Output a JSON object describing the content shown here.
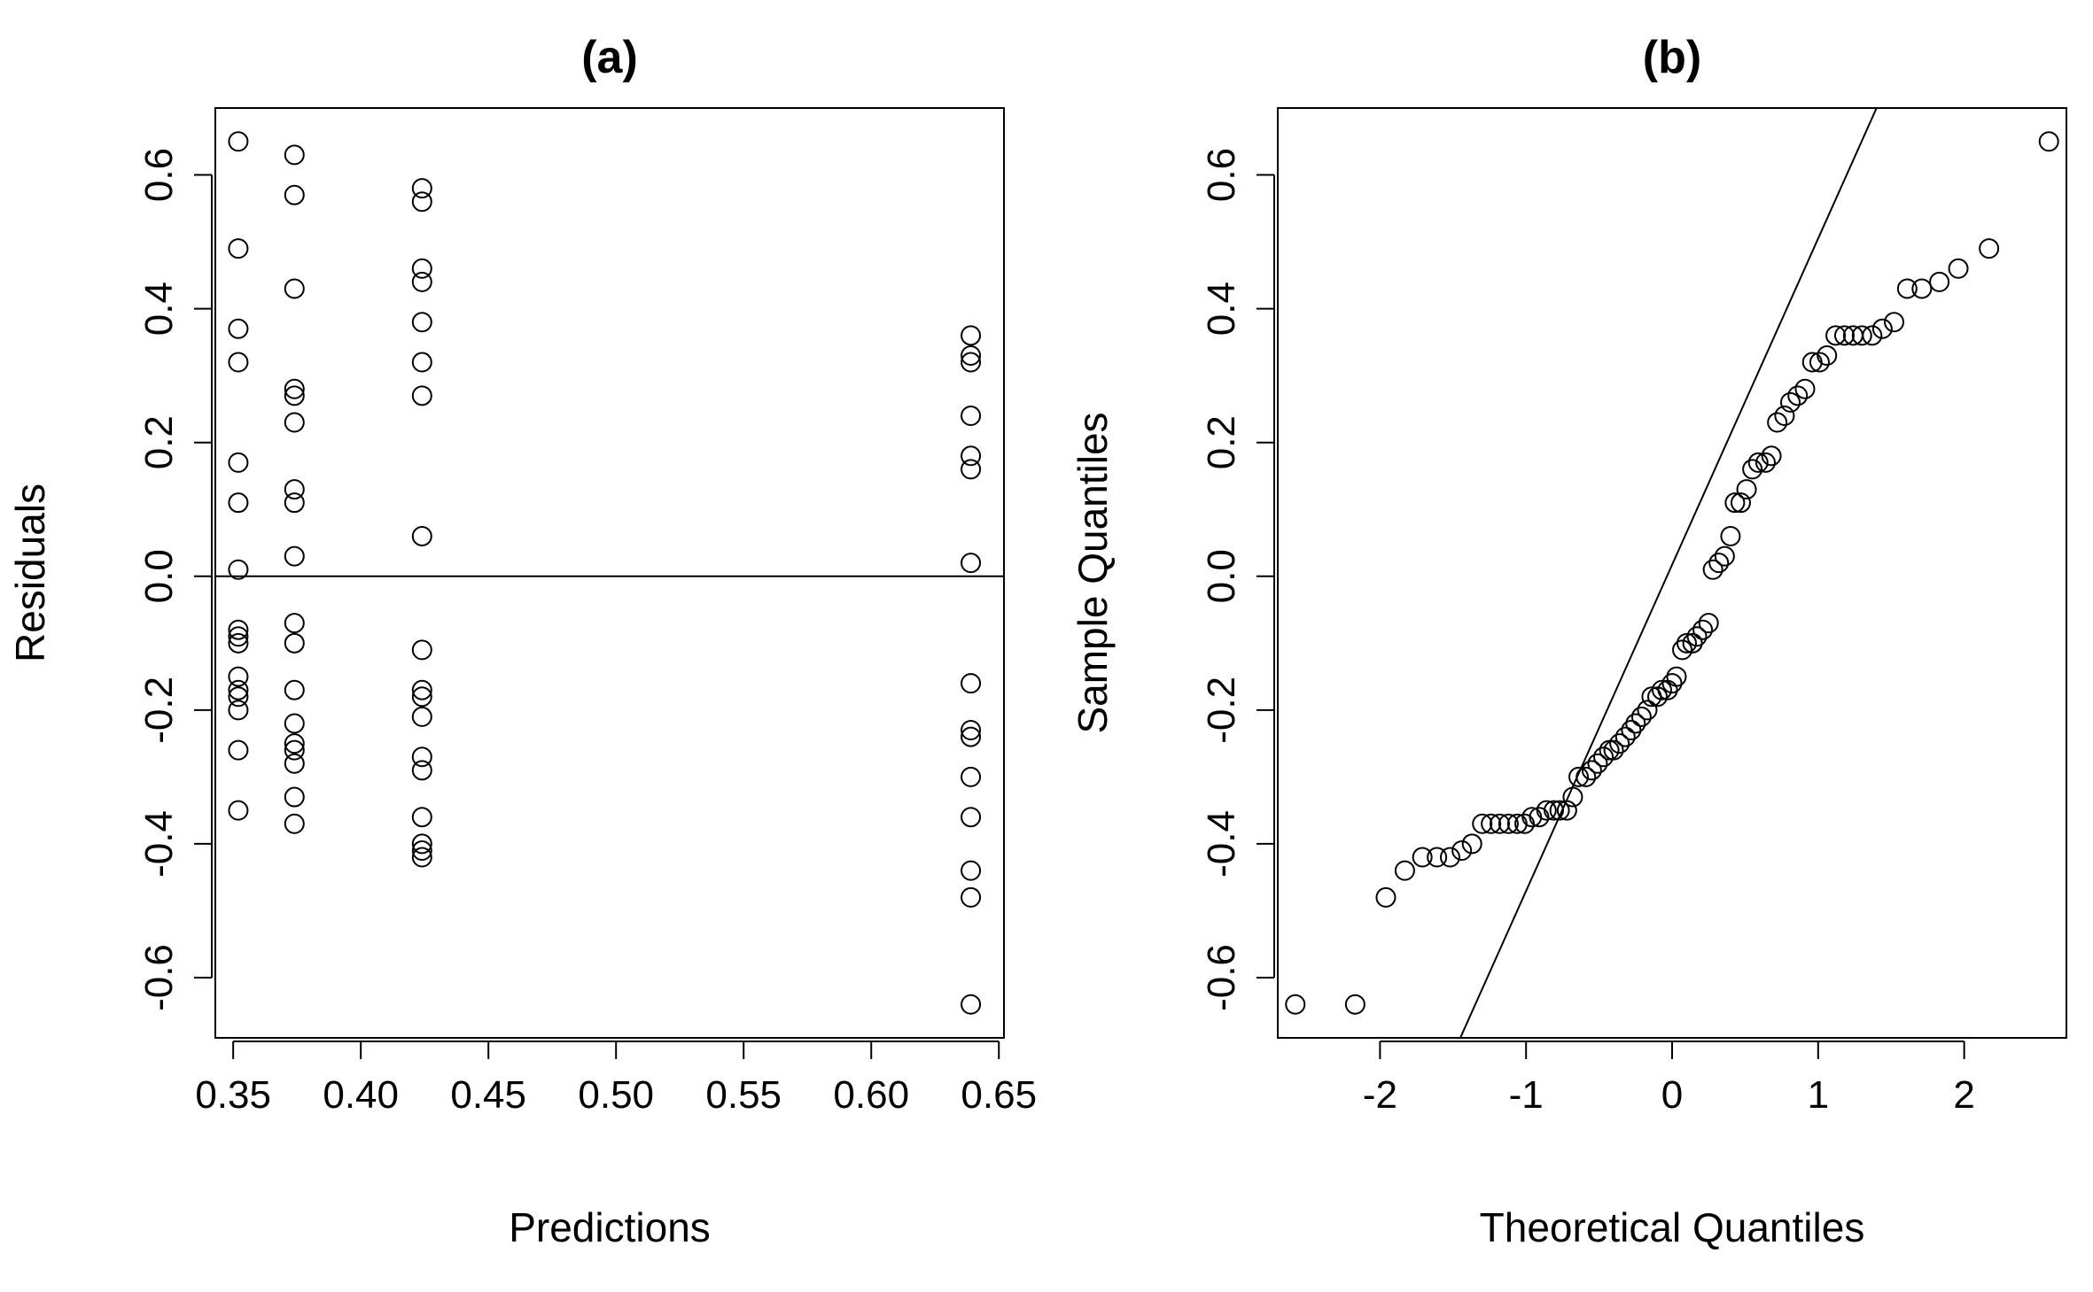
{
  "chart_data": [
    {
      "type": "scatter",
      "title": "(a)",
      "xlabel": "Predictions",
      "ylabel": "Residuals",
      "xlim": [
        0.343,
        0.652
      ],
      "ylim": [
        -0.69,
        0.7
      ],
      "xticks": [
        {
          "value": 0.35,
          "label": "0.35"
        },
        {
          "value": 0.4,
          "label": "0.40"
        },
        {
          "value": 0.45,
          "label": "0.45"
        },
        {
          "value": 0.5,
          "label": "0.50"
        },
        {
          "value": 0.55,
          "label": "0.55"
        },
        {
          "value": 0.6,
          "label": "0.60"
        },
        {
          "value": 0.65,
          "label": "0.65"
        }
      ],
      "yticks": [
        {
          "value": -0.6,
          "label": "-0.6"
        },
        {
          "value": -0.4,
          "label": "-0.4"
        },
        {
          "value": -0.2,
          "label": "-0.2"
        },
        {
          "value": 0.0,
          "label": "0.0"
        },
        {
          "value": 0.2,
          "label": "0.2"
        },
        {
          "value": 0.4,
          "label": "0.4"
        },
        {
          "value": 0.6,
          "label": "0.6"
        }
      ],
      "reference_line": {
        "type": "horizontal",
        "y": 0
      },
      "grid": false,
      "legend": "none",
      "points": [
        {
          "x": 0.352,
          "y": 0.65
        },
        {
          "x": 0.352,
          "y": 0.49
        },
        {
          "x": 0.352,
          "y": 0.37
        },
        {
          "x": 0.352,
          "y": 0.32
        },
        {
          "x": 0.352,
          "y": 0.17
        },
        {
          "x": 0.352,
          "y": 0.11
        },
        {
          "x": 0.352,
          "y": 0.01
        },
        {
          "x": 0.352,
          "y": -0.08
        },
        {
          "x": 0.352,
          "y": -0.09
        },
        {
          "x": 0.352,
          "y": -0.1
        },
        {
          "x": 0.352,
          "y": -0.15
        },
        {
          "x": 0.352,
          "y": -0.17
        },
        {
          "x": 0.352,
          "y": -0.18
        },
        {
          "x": 0.352,
          "y": -0.2
        },
        {
          "x": 0.352,
          "y": -0.26
        },
        {
          "x": 0.352,
          "y": -0.35
        },
        {
          "x": 0.374,
          "y": 0.63
        },
        {
          "x": 0.374,
          "y": 0.57
        },
        {
          "x": 0.374,
          "y": 0.43
        },
        {
          "x": 0.374,
          "y": 0.28
        },
        {
          "x": 0.374,
          "y": 0.27
        },
        {
          "x": 0.374,
          "y": 0.23
        },
        {
          "x": 0.374,
          "y": 0.13
        },
        {
          "x": 0.374,
          "y": 0.11
        },
        {
          "x": 0.374,
          "y": 0.03
        },
        {
          "x": 0.374,
          "y": -0.07
        },
        {
          "x": 0.374,
          "y": -0.1
        },
        {
          "x": 0.374,
          "y": -0.17
        },
        {
          "x": 0.374,
          "y": -0.22
        },
        {
          "x": 0.374,
          "y": -0.25
        },
        {
          "x": 0.374,
          "y": -0.26
        },
        {
          "x": 0.374,
          "y": -0.28
        },
        {
          "x": 0.374,
          "y": -0.33
        },
        {
          "x": 0.374,
          "y": -0.37
        },
        {
          "x": 0.424,
          "y": 0.58
        },
        {
          "x": 0.424,
          "y": 0.56
        },
        {
          "x": 0.424,
          "y": 0.46
        },
        {
          "x": 0.424,
          "y": 0.44
        },
        {
          "x": 0.424,
          "y": 0.38
        },
        {
          "x": 0.424,
          "y": 0.32
        },
        {
          "x": 0.424,
          "y": 0.27
        },
        {
          "x": 0.424,
          "y": 0.06
        },
        {
          "x": 0.424,
          "y": -0.11
        },
        {
          "x": 0.424,
          "y": -0.17
        },
        {
          "x": 0.424,
          "y": -0.18
        },
        {
          "x": 0.424,
          "y": -0.21
        },
        {
          "x": 0.424,
          "y": -0.27
        },
        {
          "x": 0.424,
          "y": -0.29
        },
        {
          "x": 0.424,
          "y": -0.36
        },
        {
          "x": 0.424,
          "y": -0.4
        },
        {
          "x": 0.424,
          "y": -0.41
        },
        {
          "x": 0.424,
          "y": -0.42
        },
        {
          "x": 0.639,
          "y": 0.36
        },
        {
          "x": 0.639,
          "y": 0.33
        },
        {
          "x": 0.639,
          "y": 0.32
        },
        {
          "x": 0.639,
          "y": 0.24
        },
        {
          "x": 0.639,
          "y": 0.18
        },
        {
          "x": 0.639,
          "y": 0.16
        },
        {
          "x": 0.639,
          "y": 0.02
        },
        {
          "x": 0.639,
          "y": -0.16
        },
        {
          "x": 0.639,
          "y": -0.23
        },
        {
          "x": 0.639,
          "y": -0.24
        },
        {
          "x": 0.639,
          "y": -0.3
        },
        {
          "x": 0.639,
          "y": -0.36
        },
        {
          "x": 0.639,
          "y": -0.44
        },
        {
          "x": 0.639,
          "y": -0.48
        },
        {
          "x": 0.639,
          "y": -0.64
        }
      ]
    },
    {
      "type": "scatter",
      "title": "(b)",
      "xlabel": "Theoretical Quantiles",
      "ylabel": "Sample Quantiles",
      "xlim": [
        -2.7,
        2.7
      ],
      "ylim": [
        -0.69,
        0.7
      ],
      "xticks": [
        {
          "value": -2,
          "label": "-2"
        },
        {
          "value": -1,
          "label": "-1"
        },
        {
          "value": 0,
          "label": "0"
        },
        {
          "value": 1,
          "label": "1"
        },
        {
          "value": 2,
          "label": "2"
        }
      ],
      "yticks": [
        {
          "value": -0.6,
          "label": "-0.6"
        },
        {
          "value": -0.4,
          "label": "-0.4"
        },
        {
          "value": -0.2,
          "label": "-0.2"
        },
        {
          "value": 0.0,
          "label": "0.0"
        },
        {
          "value": 0.2,
          "label": "0.2"
        },
        {
          "value": 0.4,
          "label": "0.4"
        },
        {
          "value": 0.6,
          "label": "0.6"
        }
      ],
      "reference_line": {
        "type": "qqline",
        "x1": -1.45,
        "y1": -0.69,
        "x2": 1.4,
        "y2": 0.7
      },
      "grid": false,
      "legend": "none",
      "points": [
        {
          "x": -2.58,
          "y": -0.64
        },
        {
          "x": -2.17,
          "y": -0.64
        },
        {
          "x": -1.96,
          "y": -0.48
        },
        {
          "x": -1.83,
          "y": -0.44
        },
        {
          "x": -1.71,
          "y": -0.42
        },
        {
          "x": -1.61,
          "y": -0.42
        },
        {
          "x": -1.52,
          "y": -0.42
        },
        {
          "x": -1.44,
          "y": -0.41
        },
        {
          "x": -1.37,
          "y": -0.4
        },
        {
          "x": -1.3,
          "y": -0.37
        },
        {
          "x": -1.24,
          "y": -0.37
        },
        {
          "x": -1.18,
          "y": -0.37
        },
        {
          "x": -1.12,
          "y": -0.37
        },
        {
          "x": -1.06,
          "y": -0.37
        },
        {
          "x": -1.01,
          "y": -0.37
        },
        {
          "x": -0.96,
          "y": -0.36
        },
        {
          "x": -0.91,
          "y": -0.36
        },
        {
          "x": -0.86,
          "y": -0.35
        },
        {
          "x": -0.81,
          "y": -0.35
        },
        {
          "x": -0.77,
          "y": -0.35
        },
        {
          "x": -0.72,
          "y": -0.35
        },
        {
          "x": -0.68,
          "y": -0.33
        },
        {
          "x": -0.64,
          "y": -0.3
        },
        {
          "x": -0.59,
          "y": -0.3
        },
        {
          "x": -0.55,
          "y": -0.29
        },
        {
          "x": -0.51,
          "y": -0.28
        },
        {
          "x": -0.47,
          "y": -0.27
        },
        {
          "x": -0.43,
          "y": -0.26
        },
        {
          "x": -0.4,
          "y": -0.26
        },
        {
          "x": -0.36,
          "y": -0.25
        },
        {
          "x": -0.32,
          "y": -0.24
        },
        {
          "x": -0.28,
          "y": -0.23
        },
        {
          "x": -0.25,
          "y": -0.22
        },
        {
          "x": -0.21,
          "y": -0.21
        },
        {
          "x": -0.17,
          "y": -0.2
        },
        {
          "x": -0.14,
          "y": -0.18
        },
        {
          "x": -0.1,
          "y": -0.18
        },
        {
          "x": -0.07,
          "y": -0.17
        },
        {
          "x": -0.03,
          "y": -0.17
        },
        {
          "x": 0.0,
          "y": -0.16
        },
        {
          "x": 0.03,
          "y": -0.15
        },
        {
          "x": 0.07,
          "y": -0.11
        },
        {
          "x": 0.1,
          "y": -0.1
        },
        {
          "x": 0.14,
          "y": -0.1
        },
        {
          "x": 0.17,
          "y": -0.09
        },
        {
          "x": 0.21,
          "y": -0.08
        },
        {
          "x": 0.25,
          "y": -0.07
        },
        {
          "x": 0.28,
          "y": 0.01
        },
        {
          "x": 0.32,
          "y": 0.02
        },
        {
          "x": 0.36,
          "y": 0.03
        },
        {
          "x": 0.4,
          "y": 0.06
        },
        {
          "x": 0.43,
          "y": 0.11
        },
        {
          "x": 0.47,
          "y": 0.11
        },
        {
          "x": 0.51,
          "y": 0.13
        },
        {
          "x": 0.55,
          "y": 0.16
        },
        {
          "x": 0.59,
          "y": 0.17
        },
        {
          "x": 0.64,
          "y": 0.17
        },
        {
          "x": 0.68,
          "y": 0.18
        },
        {
          "x": 0.72,
          "y": 0.23
        },
        {
          "x": 0.77,
          "y": 0.24
        },
        {
          "x": 0.81,
          "y": 0.26
        },
        {
          "x": 0.86,
          "y": 0.27
        },
        {
          "x": 0.91,
          "y": 0.28
        },
        {
          "x": 0.96,
          "y": 0.32
        },
        {
          "x": 1.01,
          "y": 0.32
        },
        {
          "x": 1.06,
          "y": 0.33
        },
        {
          "x": 1.12,
          "y": 0.36
        },
        {
          "x": 1.18,
          "y": 0.36
        },
        {
          "x": 1.24,
          "y": 0.36
        },
        {
          "x": 1.3,
          "y": 0.36
        },
        {
          "x": 1.37,
          "y": 0.36
        },
        {
          "x": 1.44,
          "y": 0.37
        },
        {
          "x": 1.52,
          "y": 0.38
        },
        {
          "x": 1.61,
          "y": 0.43
        },
        {
          "x": 1.71,
          "y": 0.43
        },
        {
          "x": 1.83,
          "y": 0.44
        },
        {
          "x": 1.96,
          "y": 0.46
        },
        {
          "x": 2.17,
          "y": 0.49
        },
        {
          "x": 2.58,
          "y": 0.65
        }
      ]
    }
  ]
}
